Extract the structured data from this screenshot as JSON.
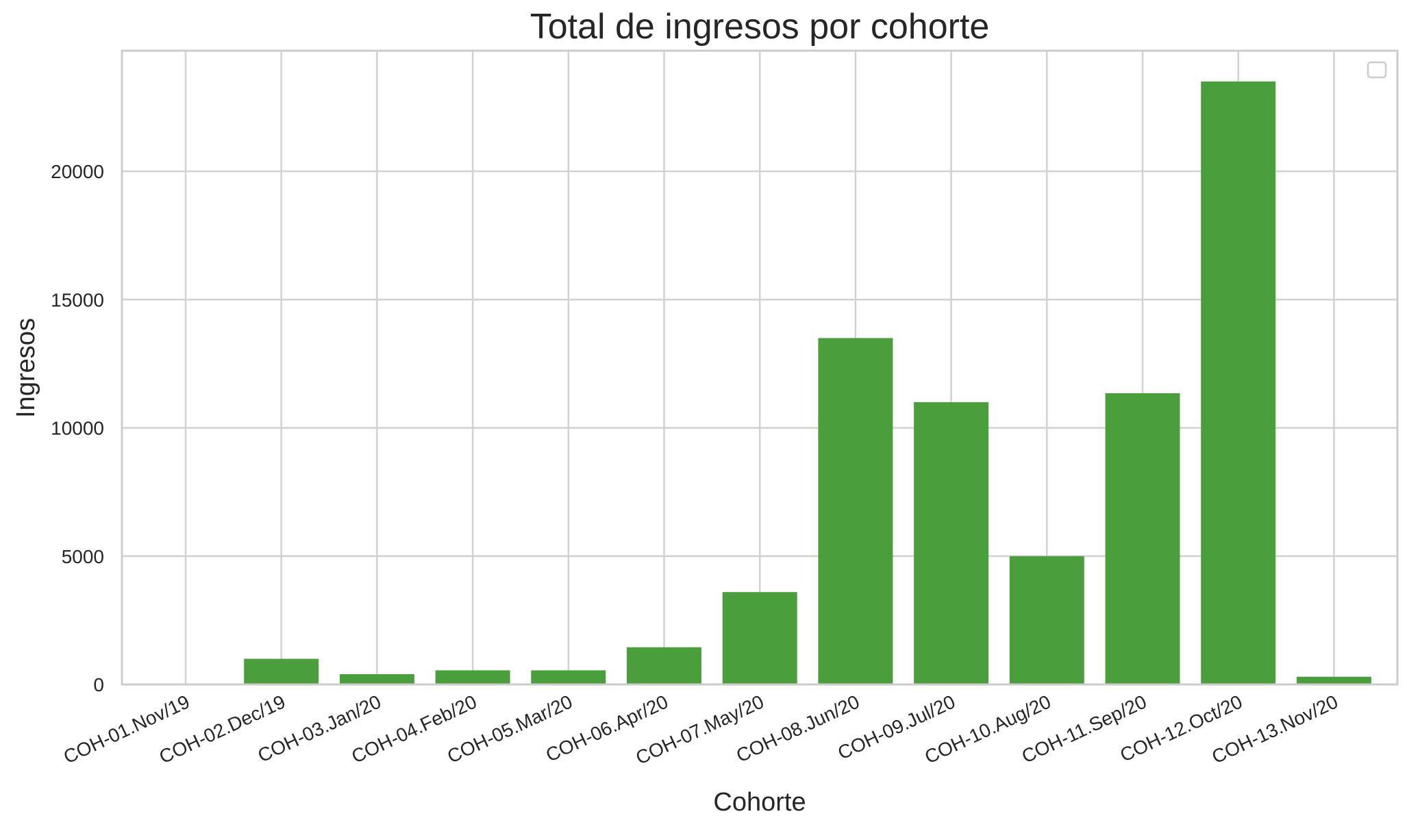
{
  "chart_data": {
    "type": "bar",
    "title": "Total de ingresos por cohorte",
    "xlabel": "Cohorte",
    "ylabel": "Ingresos",
    "categories": [
      "COH-01.Nov/19",
      "COH-02.Dec/19",
      "COH-03.Jan/20",
      "COH-04.Feb/20",
      "COH-05.Mar/20",
      "COH-06.Apr/20",
      "COH-07.May/20",
      "COH-08.Jun/20",
      "COH-09.Jul/20",
      "COH-10.Aug/20",
      "COH-11.Sep/20",
      "COH-12.Oct/20",
      "COH-13.Nov/20"
    ],
    "values": [
      0,
      1000,
      400,
      550,
      550,
      1450,
      3600,
      13500,
      11000,
      5000,
      11350,
      23500,
      300
    ],
    "ylim": [
      0,
      24700
    ],
    "yticks": [
      0,
      5000,
      10000,
      15000,
      20000
    ],
    "bar_color": "#4a9e3b",
    "grid": true,
    "legend": {
      "placement": "top-right",
      "entries": []
    }
  }
}
